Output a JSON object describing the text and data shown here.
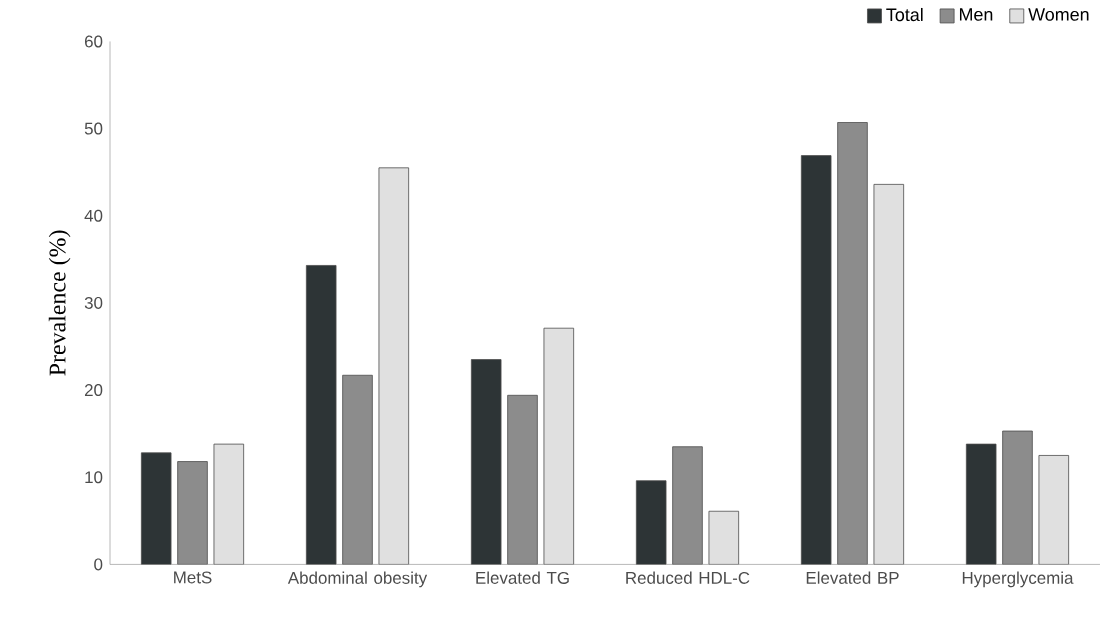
{
  "chart_data": {
    "type": "bar",
    "ylabel": "Prevalence (%)",
    "categories": [
      "MetS",
      "Abdominal obesity",
      "Elevated TG",
      "Reduced HDL-C",
      "Elevated BP",
      "Hyperglycemia"
    ],
    "series": [
      {
        "name": "Total",
        "color": "#2d3436",
        "values": [
          12.8,
          34.3,
          23.5,
          9.6,
          46.9,
          13.8
        ]
      },
      {
        "name": "Men",
        "color": "#8c8c8c",
        "values": [
          11.8,
          21.7,
          19.4,
          13.5,
          50.7,
          15.3
        ]
      },
      {
        "name": "Women",
        "color": "#e0e0e0",
        "values": [
          13.8,
          45.5,
          27.1,
          6.1,
          43.6,
          12.5
        ]
      }
    ],
    "ylim": [
      0,
      60
    ],
    "yticks": [
      0,
      10,
      20,
      30,
      40,
      50,
      60
    ],
    "legend": "top right",
    "grid": false
  }
}
